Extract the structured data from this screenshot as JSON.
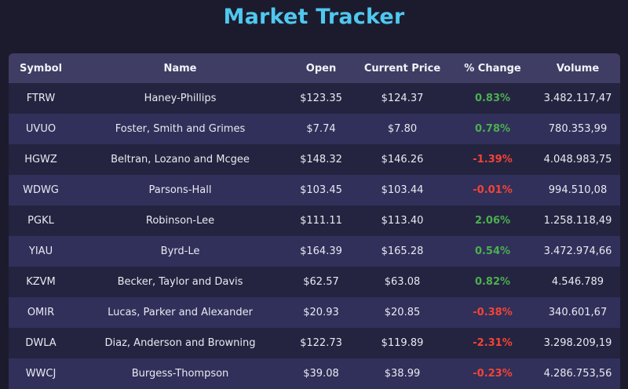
{
  "page": {
    "title": "Market Tracker"
  },
  "table": {
    "columns": [
      "Symbol",
      "Name",
      "Open",
      "Current Price",
      "% Change",
      "Volume"
    ],
    "rows": [
      {
        "symbol": "FTRW",
        "name": "Haney-Phillips",
        "open": "$123.35",
        "price": "$124.37",
        "change": "0.83%",
        "direction": "up",
        "volume": "3.482.117,47"
      },
      {
        "symbol": "UVUO",
        "name": "Foster, Smith and Grimes",
        "open": "$7.74",
        "price": "$7.80",
        "change": "0.78%",
        "direction": "up",
        "volume": "780.353,99"
      },
      {
        "symbol": "HGWZ",
        "name": "Beltran, Lozano and Mcgee",
        "open": "$148.32",
        "price": "$146.26",
        "change": "-1.39%",
        "direction": "down",
        "volume": "4.048.983,75"
      },
      {
        "symbol": "WDWG",
        "name": "Parsons-Hall",
        "open": "$103.45",
        "price": "$103.44",
        "change": "-0.01%",
        "direction": "down",
        "volume": "994.510,08"
      },
      {
        "symbol": "PGKL",
        "name": "Robinson-Lee",
        "open": "$111.11",
        "price": "$113.40",
        "change": "2.06%",
        "direction": "up",
        "volume": "1.258.118,49"
      },
      {
        "symbol": "YIAU",
        "name": "Byrd-Le",
        "open": "$164.39",
        "price": "$165.28",
        "change": "0.54%",
        "direction": "up",
        "volume": "3.472.974,66"
      },
      {
        "symbol": "KZVM",
        "name": "Becker, Taylor and Davis",
        "open": "$62.57",
        "price": "$63.08",
        "change": "0.82%",
        "direction": "up",
        "volume": "4.546.789"
      },
      {
        "symbol": "OMIR",
        "name": "Lucas, Parker and Alexander",
        "open": "$20.93",
        "price": "$20.85",
        "change": "-0.38%",
        "direction": "down",
        "volume": "340.601,67"
      },
      {
        "symbol": "DWLA",
        "name": "Diaz, Anderson and Browning",
        "open": "$122.73",
        "price": "$119.89",
        "change": "-2.31%",
        "direction": "down",
        "volume": "3.298.209,19"
      },
      {
        "symbol": "WWCJ",
        "name": "Burgess-Thompson",
        "open": "$39.08",
        "price": "$38.99",
        "change": "-0.23%",
        "direction": "down",
        "volume": "4.286.753,56"
      }
    ]
  },
  "colors": {
    "background": "#1c1b2e",
    "title": "#4fc8ef",
    "header": "#3f3d63",
    "positive": "#4caf50",
    "negative": "#f44336"
  }
}
